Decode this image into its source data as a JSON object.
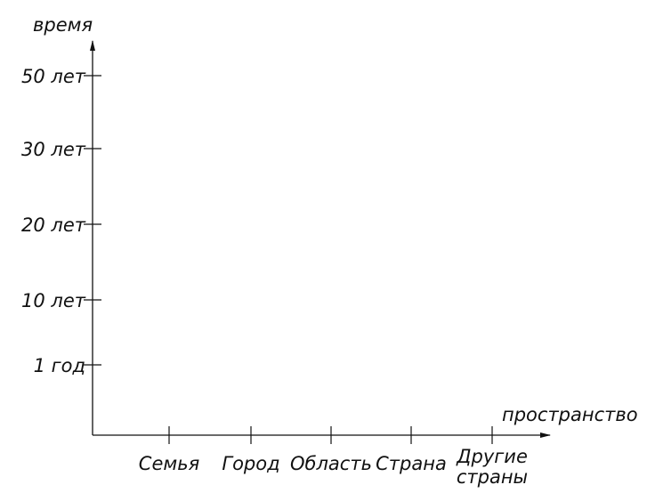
{
  "chart_data": {
    "type": "line",
    "title": "",
    "ylabel": "время",
    "xlabel": "пространство",
    "y_ticks": [
      "1 год",
      "10 лет",
      "20 лет",
      "30 лет",
      "50 лет"
    ],
    "x_ticks": [
      {
        "lines": [
          "Семья"
        ]
      },
      {
        "lines": [
          "Город"
        ]
      },
      {
        "lines": [
          "Область"
        ]
      },
      {
        "lines": [
          "Страна"
        ]
      },
      {
        "lines": [
          "Другие",
          "страны"
        ]
      }
    ],
    "series": []
  }
}
